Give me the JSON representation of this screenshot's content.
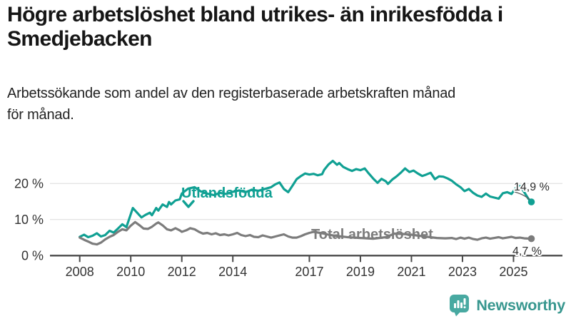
{
  "header": {
    "title_lines": [
      "Högre arbetslöshet bland utrikes- än inrikesfödda i",
      "Smedjebacken"
    ],
    "subtitle_lines": [
      "Arbetssökande som andel av den registerbaserade arbetskraften månad",
      "för månad."
    ]
  },
  "colors": {
    "foreign_born_line": "#10A093",
    "total_line": "#7C7C7C",
    "grid": "#DCDCDC",
    "axis": "#4A4A4A",
    "annotation_text": "#2B2B2B",
    "brand_teal": "#48A9A1",
    "brand_text_teal": "#38978F"
  },
  "icons": {
    "label_pointer": "chevron-down-icon",
    "brand_mark": "speech-bubble-bar-chart-icon"
  },
  "chart_data": {
    "type": "line",
    "title": "",
    "xlabel": "",
    "ylabel": "",
    "x_unit": "decimal_year (monthly share of registered labour force)",
    "xlim": [
      2007.6,
      2026.0
    ],
    "ylim": [
      0,
      27
    ],
    "grid": "horizontal-only",
    "legend_position": "inline-direct-labels",
    "yticks": [
      {
        "value": 0,
        "label": "0 %"
      },
      {
        "value": 10,
        "label": "10 %"
      },
      {
        "value": 20,
        "label": "20 %"
      }
    ],
    "xticks": [
      {
        "value": 2008,
        "label": "2008"
      },
      {
        "value": 2010,
        "label": "2010"
      },
      {
        "value": 2012,
        "label": "2012"
      },
      {
        "value": 2014,
        "label": "2014"
      },
      {
        "value": 2017,
        "label": "2017"
      },
      {
        "value": 2019,
        "label": "2019"
      },
      {
        "value": 2021,
        "label": "2021"
      },
      {
        "value": 2023,
        "label": "2023"
      },
      {
        "value": 2025,
        "label": "2025"
      }
    ],
    "series": [
      {
        "name": "Utlandsfödda",
        "color": "#10A093",
        "end_value_label": "14,9 %",
        "points": [
          [
            2008.0,
            5.2
          ],
          [
            2008.17,
            5.8
          ],
          [
            2008.33,
            5.1
          ],
          [
            2008.5,
            5.5
          ],
          [
            2008.67,
            6.2
          ],
          [
            2008.83,
            5.3
          ],
          [
            2009.0,
            5.7
          ],
          [
            2009.17,
            6.9
          ],
          [
            2009.33,
            6.4
          ],
          [
            2009.5,
            7.5
          ],
          [
            2009.67,
            8.7
          ],
          [
            2009.83,
            7.9
          ],
          [
            2010.0,
            11.5
          ],
          [
            2010.08,
            13.2
          ],
          [
            2010.25,
            11.9
          ],
          [
            2010.42,
            10.6
          ],
          [
            2010.58,
            11.3
          ],
          [
            2010.75,
            11.9
          ],
          [
            2010.83,
            11.2
          ],
          [
            2011.0,
            13.2
          ],
          [
            2011.08,
            12.5
          ],
          [
            2011.25,
            14.2
          ],
          [
            2011.42,
            13.5
          ],
          [
            2011.5,
            14.9
          ],
          [
            2011.58,
            14.2
          ],
          [
            2011.75,
            15.3
          ],
          [
            2011.92,
            15.6
          ],
          [
            2012.0,
            17.2
          ],
          [
            2012.25,
            18.6
          ],
          [
            2012.5,
            19.0
          ],
          [
            2012.75,
            17.8
          ],
          [
            2013.0,
            17.2
          ],
          [
            2013.25,
            16.8
          ],
          [
            2013.5,
            17.4
          ],
          [
            2013.75,
            17.1
          ],
          [
            2014.0,
            17.7
          ],
          [
            2014.25,
            18.1
          ],
          [
            2014.5,
            17.6
          ],
          [
            2014.75,
            18.3
          ],
          [
            2015.0,
            18.0
          ],
          [
            2015.25,
            18.5
          ],
          [
            2015.5,
            19.0
          ],
          [
            2015.67,
            19.8
          ],
          [
            2015.83,
            20.3
          ],
          [
            2016.0,
            18.5
          ],
          [
            2016.17,
            17.6
          ],
          [
            2016.33,
            19.3
          ],
          [
            2016.5,
            21.2
          ],
          [
            2016.67,
            22.1
          ],
          [
            2016.83,
            22.8
          ],
          [
            2017.0,
            22.5
          ],
          [
            2017.17,
            22.7
          ],
          [
            2017.33,
            22.3
          ],
          [
            2017.5,
            22.6
          ],
          [
            2017.58,
            23.8
          ],
          [
            2017.75,
            25.3
          ],
          [
            2017.92,
            26.3
          ],
          [
            2018.08,
            25.2
          ],
          [
            2018.17,
            25.7
          ],
          [
            2018.33,
            24.6
          ],
          [
            2018.5,
            24.0
          ],
          [
            2018.67,
            23.5
          ],
          [
            2018.83,
            24.0
          ],
          [
            2019.0,
            23.7
          ],
          [
            2019.17,
            24.2
          ],
          [
            2019.33,
            22.8
          ],
          [
            2019.5,
            21.4
          ],
          [
            2019.67,
            20.2
          ],
          [
            2019.83,
            21.3
          ],
          [
            2020.0,
            20.6
          ],
          [
            2020.08,
            19.9
          ],
          [
            2020.25,
            21.1
          ],
          [
            2020.42,
            22.0
          ],
          [
            2020.58,
            23.0
          ],
          [
            2020.75,
            24.2
          ],
          [
            2020.92,
            23.2
          ],
          [
            2021.08,
            23.6
          ],
          [
            2021.25,
            22.8
          ],
          [
            2021.42,
            22.1
          ],
          [
            2021.58,
            22.5
          ],
          [
            2021.75,
            23.0
          ],
          [
            2021.92,
            21.2
          ],
          [
            2022.08,
            22.0
          ],
          [
            2022.25,
            21.9
          ],
          [
            2022.42,
            21.4
          ],
          [
            2022.58,
            20.8
          ],
          [
            2022.75,
            19.8
          ],
          [
            2022.92,
            19.0
          ],
          [
            2023.08,
            17.9
          ],
          [
            2023.25,
            18.5
          ],
          [
            2023.42,
            17.4
          ],
          [
            2023.58,
            16.7
          ],
          [
            2023.75,
            16.3
          ],
          [
            2023.92,
            17.2
          ],
          [
            2024.08,
            16.4
          ],
          [
            2024.25,
            16.1
          ],
          [
            2024.42,
            15.8
          ],
          [
            2024.58,
            17.3
          ],
          [
            2024.75,
            17.6
          ],
          [
            2024.92,
            17.1
          ],
          [
            2025.08,
            18.7
          ],
          [
            2025.25,
            19.3
          ],
          [
            2025.42,
            17.6
          ],
          [
            2025.58,
            15.8
          ],
          [
            2025.7,
            14.9
          ]
        ]
      },
      {
        "name": "Total arbetslöshet",
        "color": "#7C7C7C",
        "end_value_label": "4,7 %",
        "points": [
          [
            2008.0,
            5.0
          ],
          [
            2008.17,
            4.4
          ],
          [
            2008.33,
            3.9
          ],
          [
            2008.5,
            3.3
          ],
          [
            2008.67,
            3.1
          ],
          [
            2008.83,
            3.6
          ],
          [
            2009.0,
            4.5
          ],
          [
            2009.17,
            5.2
          ],
          [
            2009.33,
            5.7
          ],
          [
            2009.5,
            6.6
          ],
          [
            2009.67,
            7.3
          ],
          [
            2009.83,
            7.0
          ],
          [
            2010.0,
            8.3
          ],
          [
            2010.17,
            9.3
          ],
          [
            2010.33,
            8.5
          ],
          [
            2010.5,
            7.5
          ],
          [
            2010.67,
            7.4
          ],
          [
            2010.83,
            8.0
          ],
          [
            2011.0,
            8.9
          ],
          [
            2011.08,
            9.2
          ],
          [
            2011.25,
            8.4
          ],
          [
            2011.42,
            7.3
          ],
          [
            2011.58,
            7.0
          ],
          [
            2011.75,
            7.6
          ],
          [
            2011.92,
            7.0
          ],
          [
            2012.0,
            6.6
          ],
          [
            2012.17,
            7.0
          ],
          [
            2012.33,
            7.6
          ],
          [
            2012.5,
            7.3
          ],
          [
            2012.67,
            6.6
          ],
          [
            2012.83,
            6.1
          ],
          [
            2013.0,
            6.3
          ],
          [
            2013.17,
            5.9
          ],
          [
            2013.33,
            6.2
          ],
          [
            2013.5,
            5.7
          ],
          [
            2013.67,
            5.9
          ],
          [
            2013.83,
            5.6
          ],
          [
            2014.0,
            5.9
          ],
          [
            2014.17,
            6.3
          ],
          [
            2014.33,
            5.7
          ],
          [
            2014.5,
            5.4
          ],
          [
            2014.67,
            5.7
          ],
          [
            2014.83,
            5.2
          ],
          [
            2015.0,
            5.1
          ],
          [
            2015.17,
            5.6
          ],
          [
            2015.33,
            5.3
          ],
          [
            2015.5,
            5.0
          ],
          [
            2015.67,
            5.3
          ],
          [
            2015.83,
            5.6
          ],
          [
            2016.0,
            5.9
          ],
          [
            2016.17,
            5.3
          ],
          [
            2016.33,
            5.0
          ],
          [
            2016.5,
            5.0
          ],
          [
            2016.67,
            5.4
          ],
          [
            2016.83,
            5.9
          ],
          [
            2017.0,
            6.3
          ],
          [
            2017.17,
            6.6
          ],
          [
            2017.5,
            6.2
          ],
          [
            2017.75,
            5.8
          ],
          [
            2018.0,
            5.5
          ],
          [
            2018.5,
            5.1
          ],
          [
            2019.0,
            4.9
          ],
          [
            2019.5,
            4.7
          ],
          [
            2020.0,
            5.1
          ],
          [
            2020.33,
            6.1
          ],
          [
            2020.67,
            6.0
          ],
          [
            2021.0,
            5.8
          ],
          [
            2021.5,
            5.3
          ],
          [
            2022.0,
            4.9
          ],
          [
            2022.33,
            4.8
          ],
          [
            2022.58,
            4.9
          ],
          [
            2022.75,
            4.6
          ],
          [
            2022.92,
            5.0
          ],
          [
            2023.08,
            4.7
          ],
          [
            2023.25,
            5.0
          ],
          [
            2023.42,
            4.6
          ],
          [
            2023.58,
            4.4
          ],
          [
            2023.75,
            4.8
          ],
          [
            2023.92,
            5.0
          ],
          [
            2024.08,
            4.7
          ],
          [
            2024.25,
            4.9
          ],
          [
            2024.42,
            5.1
          ],
          [
            2024.58,
            4.8
          ],
          [
            2024.75,
            5.0
          ],
          [
            2024.92,
            5.2
          ],
          [
            2025.08,
            4.9
          ],
          [
            2025.25,
            5.0
          ],
          [
            2025.42,
            4.8
          ],
          [
            2025.7,
            4.7
          ]
        ]
      }
    ]
  },
  "footer": {
    "brand": "Newsworthy"
  }
}
